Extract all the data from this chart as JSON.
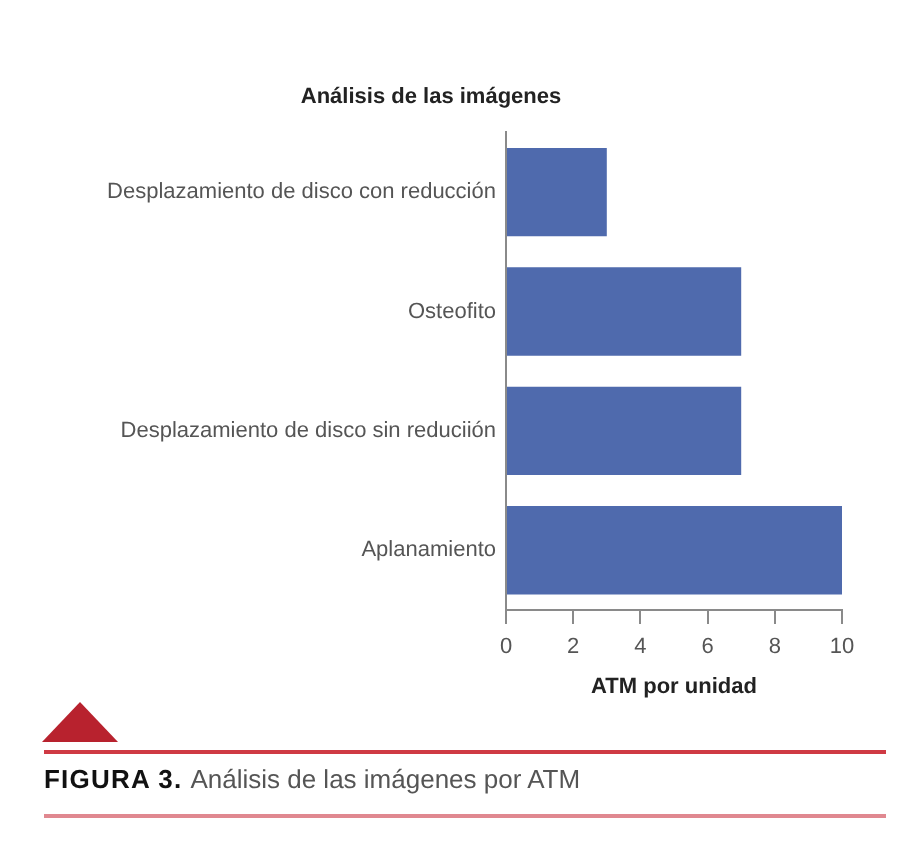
{
  "chart_data": {
    "type": "bar",
    "orientation": "horizontal",
    "title": "Análisis de las imágenes",
    "xlabel": "ATM por unidad",
    "categories": [
      "Desplazamiento de disco con reducción",
      "Osteofito",
      "Desplazamiento de disco sin reduciión",
      "Aplanamiento"
    ],
    "values": [
      3,
      7,
      7,
      10
    ],
    "color": "#4f6aad",
    "xlim": [
      0,
      10
    ],
    "xticks": [
      0,
      2,
      4,
      6,
      8,
      10
    ],
    "grid": false,
    "legend": false,
    "annotations": [
      "FIGURA 3.",
      "Análisis de las imágenes por ATM"
    ]
  }
}
